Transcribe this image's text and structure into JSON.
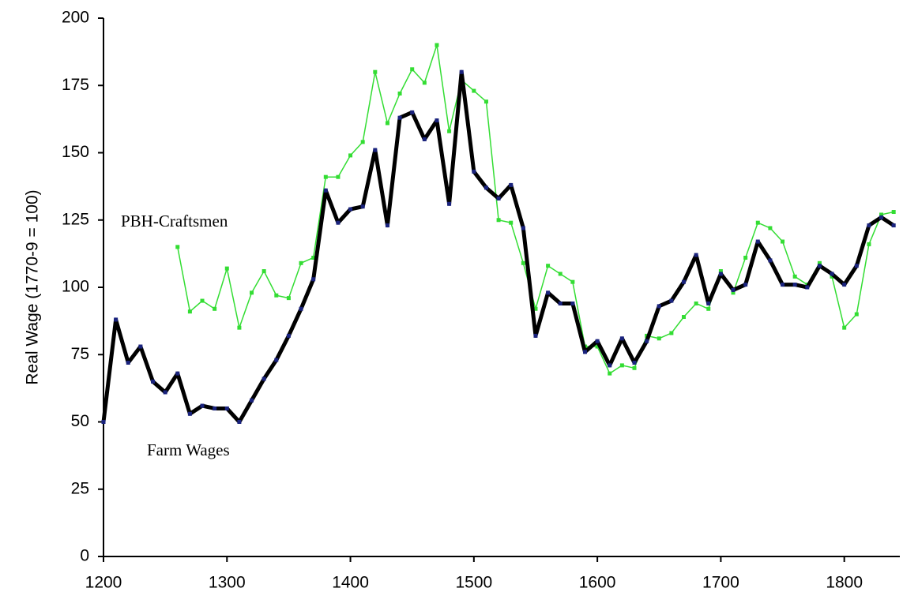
{
  "chart_data": {
    "type": "line",
    "y_label": "Real Wage (1770-9 = 100)",
    "x": [
      1200,
      1210,
      1220,
      1230,
      1240,
      1250,
      1260,
      1270,
      1280,
      1290,
      1300,
      1310,
      1320,
      1330,
      1340,
      1350,
      1360,
      1370,
      1380,
      1390,
      1400,
      1410,
      1420,
      1430,
      1440,
      1450,
      1460,
      1470,
      1480,
      1490,
      1500,
      1510,
      1520,
      1530,
      1540,
      1550,
      1560,
      1570,
      1580,
      1590,
      1600,
      1610,
      1620,
      1630,
      1640,
      1650,
      1660,
      1670,
      1680,
      1690,
      1700,
      1710,
      1720,
      1730,
      1740,
      1750,
      1760,
      1770,
      1780,
      1790,
      1800,
      1810,
      1820,
      1830,
      1840
    ],
    "series": [
      {
        "name": "Farm Wages",
        "color": "#000000",
        "marker_color": "#1a237e",
        "values": [
          50,
          88,
          72,
          78,
          65,
          61,
          68,
          53,
          56,
          55,
          55,
          50,
          58,
          66,
          73,
          82,
          92,
          103,
          136,
          124,
          129,
          130,
          151,
          123,
          163,
          165,
          155,
          162,
          131,
          180,
          143,
          137,
          133,
          138,
          122,
          82,
          98,
          94,
          94,
          76,
          80,
          71,
          81,
          72,
          80,
          93,
          95,
          102,
          112,
          94,
          105,
          99,
          101,
          117,
          110,
          101,
          101,
          100,
          108,
          105,
          101,
          108,
          123,
          126,
          123
        ]
      },
      {
        "name": "PBH-Craftsmen",
        "color": "#33dd33",
        "marker_color": "#33dd33",
        "values": [
          null,
          null,
          null,
          null,
          null,
          null,
          115,
          91,
          95,
          92,
          107,
          85,
          98,
          106,
          97,
          96,
          109,
          111,
          141,
          141,
          149,
          154,
          180,
          161,
          172,
          181,
          176,
          190,
          158,
          177,
          173,
          169,
          125,
          124,
          109,
          92,
          108,
          105,
          102,
          78,
          78,
          68,
          71,
          70,
          82,
          81,
          83,
          89,
          94,
          92,
          106,
          98,
          111,
          124,
          122,
          117,
          104,
          101,
          109,
          104,
          85,
          90,
          116,
          127,
          128
        ]
      }
    ],
    "xlim": [
      1200,
      1845
    ],
    "xticks": [
      1200,
      1300,
      1400,
      1500,
      1600,
      1700,
      1800
    ],
    "ylim": [
      0,
      200
    ],
    "yticks": [
      0,
      25,
      50,
      75,
      100,
      125,
      150,
      175,
      200
    ]
  }
}
